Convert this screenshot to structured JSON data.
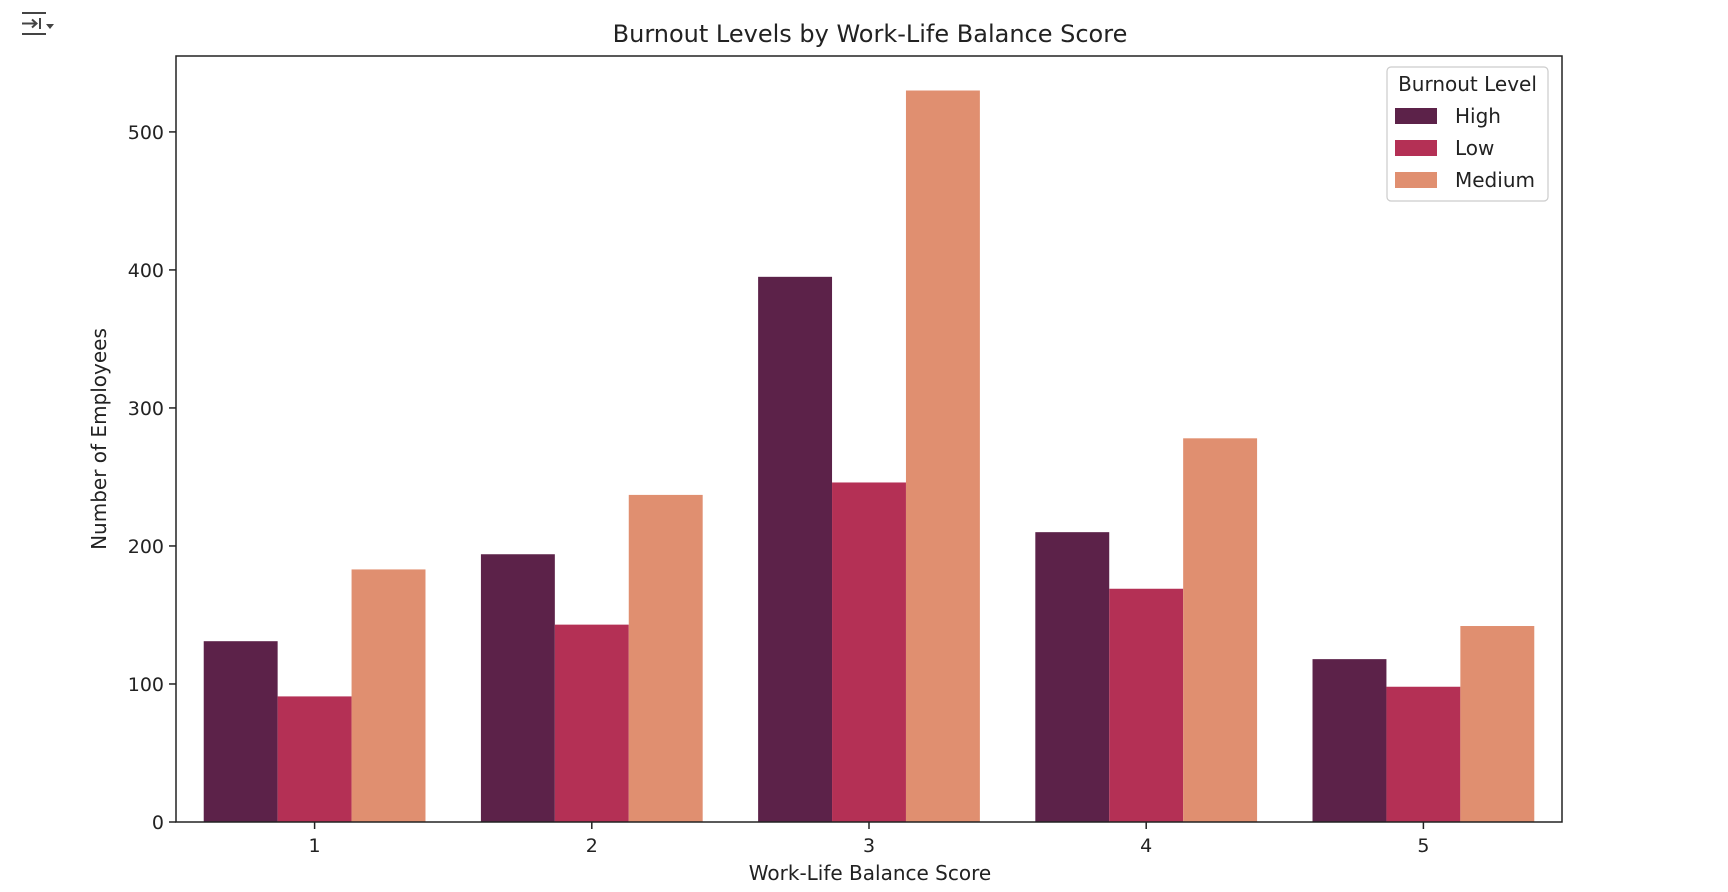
{
  "chart_data": {
    "type": "bar",
    "title": "Burnout Levels by Work-Life Balance Score",
    "xlabel": "Work-Life Balance Score",
    "ylabel": "Number of Employees",
    "categories": [
      "1",
      "2",
      "3",
      "4",
      "5"
    ],
    "ylim": [
      0,
      555
    ],
    "yticks": [
      0,
      100,
      200,
      300,
      400,
      500
    ],
    "legend": {
      "title": "Burnout Level",
      "placement": "top-right"
    },
    "series": [
      {
        "name": "High",
        "color": "#5c2249",
        "values": [
          131,
          194,
          395,
          210,
          118
        ]
      },
      {
        "name": "Low",
        "color": "#b43055",
        "values": [
          91,
          143,
          246,
          169,
          98
        ]
      },
      {
        "name": "Medium",
        "color": "#e08f70",
        "values": [
          183,
          237,
          530,
          278,
          142
        ]
      }
    ],
    "grid": false
  },
  "toolbar": {
    "output_icon": "output-collapse-icon"
  }
}
